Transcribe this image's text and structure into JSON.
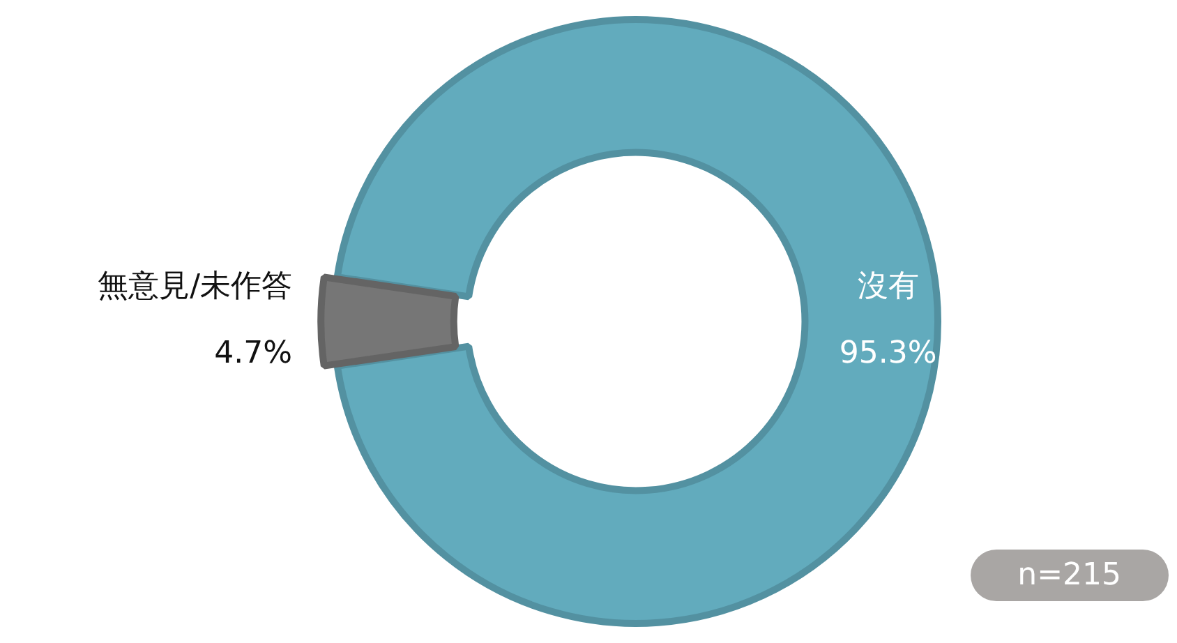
{
  "chart_data": {
    "type": "donut",
    "categories": [
      "沒有",
      "無意見/未作答"
    ],
    "values": [
      95.3,
      4.7
    ],
    "colors": [
      "#62abbd",
      "#767676"
    ],
    "value_labels": [
      "95.3%",
      "4.7%"
    ],
    "annotations": [
      "n=215"
    ],
    "legend": false
  }
}
